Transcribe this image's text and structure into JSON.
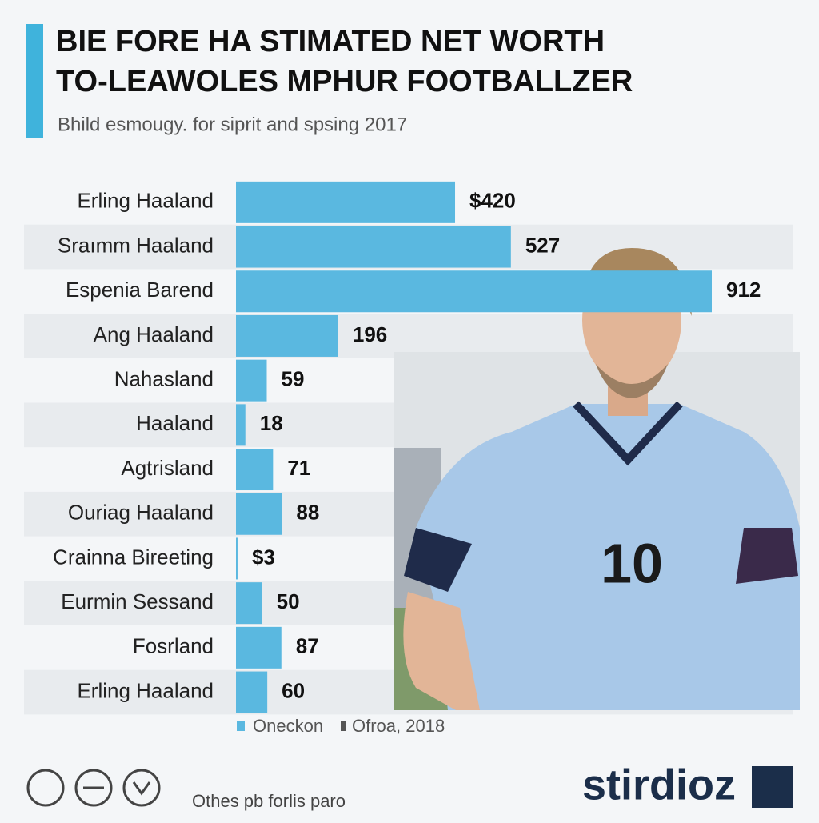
{
  "chart_data": {
    "type": "bar",
    "title": [
      "BIE FORE HA STIMATED NET WORTH",
      "TO-LEAWOLES MPHUR FOOTBALLZER"
    ],
    "subtitle": "Bhild esmougy. for siprit and spsing 2017",
    "categories": [
      "Erling Haaland",
      "Sraımm Haaland",
      "Espenia Barend",
      "Ang Haaland",
      "Nahasland",
      "Haaland",
      "Agtrisland",
      "Ouriag Haaland",
      "Crainna Bireeting",
      "Eurmin Sessand",
      "Fosrland",
      "Erling Haaland"
    ],
    "series": [
      {
        "name": "Oneckon",
        "color": "#5ab8e0",
        "values": [
          420,
          527,
          912,
          196,
          59,
          18,
          71,
          88,
          3,
          50,
          87,
          60
        ],
        "value_labels": [
          "$420",
          "527",
          "912",
          "196",
          "59",
          "18",
          "71",
          "88",
          "$3",
          "50",
          "87",
          "60"
        ]
      }
    ],
    "legend_extra": {
      "name": "Ofroa, 2018",
      "color": "#555555"
    },
    "footer": "Othes pb forlis paro",
    "brand": "stirdioz"
  }
}
